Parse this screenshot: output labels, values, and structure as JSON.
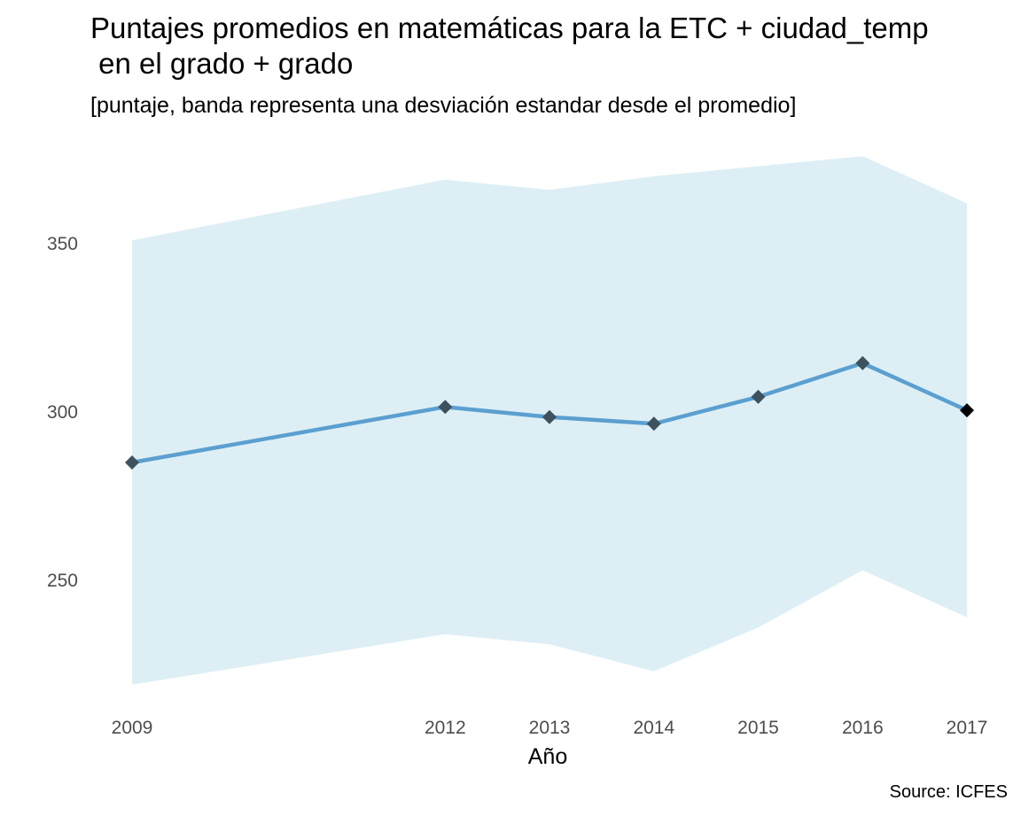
{
  "chart_data": {
    "type": "line",
    "title_line1": "Puntajes promedios en matemáticas para la ETC + ciudad_temp",
    "title_line2": " en el grado + grado",
    "subtitle": "[puntaje, banda representa una desviación estandar desde el promedio]",
    "xlabel": "Año",
    "ylabel": "",
    "caption": "Source: ICFES",
    "x": [
      2009,
      2012,
      2013,
      2014,
      2015,
      2016,
      2017
    ],
    "y_ticks": [
      250,
      300,
      350
    ],
    "ylim": [
      212,
      380
    ],
    "xlim": [
      2009,
      2017
    ],
    "grid": false,
    "legend": "none",
    "series": [
      {
        "values": [
          285,
          301.5,
          298.5,
          296.5,
          304.5,
          314.5,
          300.5
        ],
        "band_lower": [
          219,
          234,
          231,
          223,
          236,
          253,
          239
        ],
        "band_upper": [
          351,
          369,
          366,
          370,
          373,
          376,
          362
        ]
      }
    ],
    "colors": {
      "band": "#ddeff5",
      "line": "#5b9fd0",
      "marker": "#3d525e",
      "marker_last": "#000000",
      "tick_text": "#4d4d4d"
    }
  }
}
